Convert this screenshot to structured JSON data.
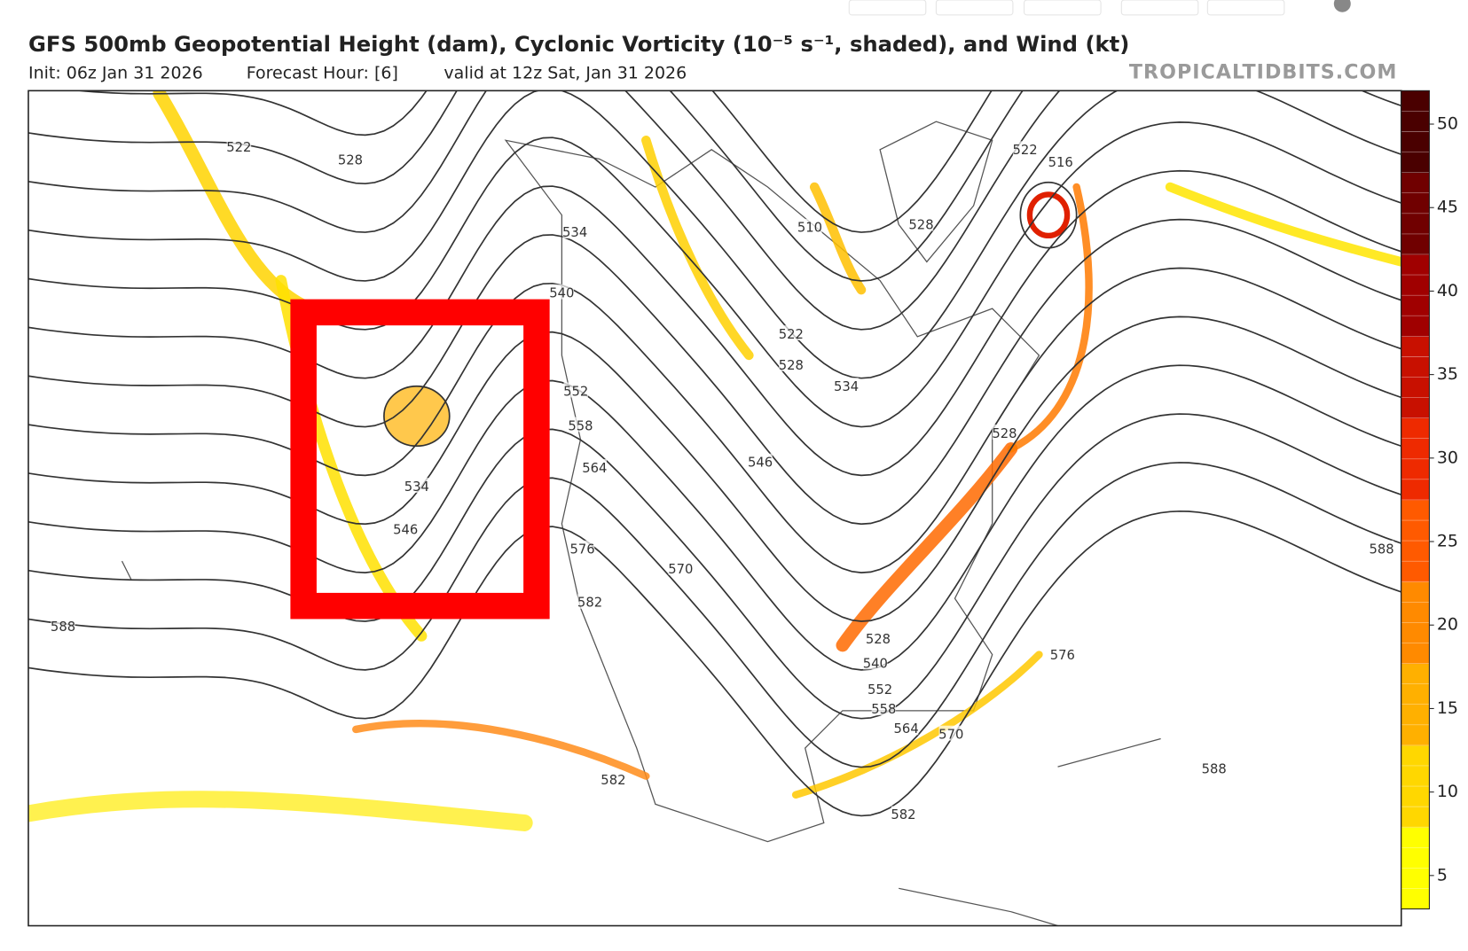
{
  "header": {
    "title": "GFS 500mb Geopotential Height (dam), Cyclonic Vorticity (10⁻⁵ s⁻¹, shaded), and Wind (kt)",
    "init": "Init: 06z Jan 31 2026",
    "forecast_hour": "Forecast Hour: [6]",
    "valid": "valid at 12z Sat, Jan 31 2026",
    "watermark": "TROPICALTIDBITS.COM"
  },
  "colorbar": {
    "range": [
      3,
      52
    ],
    "ticks": [
      5,
      10,
      15,
      20,
      25,
      30,
      35,
      40,
      45,
      50
    ],
    "colors": [
      "#ffff00",
      "#ffd700",
      "#ffb000",
      "#ff8a00",
      "#ff5a00",
      "#ee2a00",
      "#c81000",
      "#a00000",
      "#700000",
      "#4a0000"
    ]
  },
  "contour_labels": [
    522,
    528,
    534,
    540,
    552,
    558,
    564,
    576,
    582,
    570,
    546,
    534,
    528,
    522,
    510,
    528,
    522,
    516,
    528,
    534,
    546,
    588,
    582,
    582,
    528,
    540,
    552,
    558,
    564,
    570,
    576,
    588,
    588
  ]
}
